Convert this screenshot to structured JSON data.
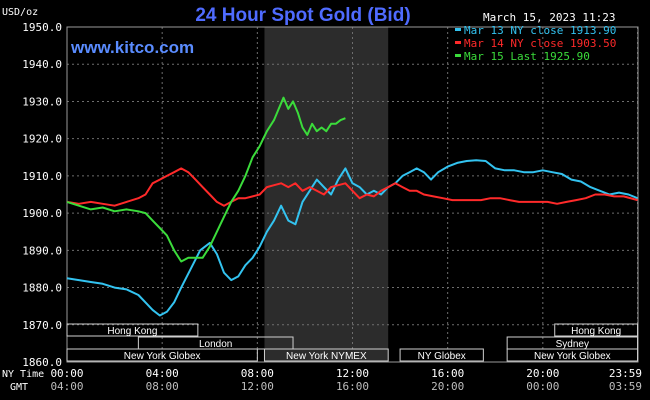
{
  "chart_data": {
    "type": "line",
    "title": "24 Hour Spot Gold (Bid)",
    "watermark": "www.kitco.com",
    "date_label": "March 15, 2023 11:23",
    "unit_label": "USD/oz",
    "ylim": [
      1860,
      1950
    ],
    "y_ticks": [
      "1950.0",
      "1940.0",
      "1930.0",
      "1920.0",
      "1910.0",
      "1900.0",
      "1890.0",
      "1880.0",
      "1870.0",
      "1860.0"
    ],
    "y_tick_values": [
      1950,
      1940,
      1930,
      1920,
      1910,
      1900,
      1890,
      1880,
      1870,
      1860
    ],
    "x_axis_rows": [
      {
        "label": "NY Time",
        "ticks": [
          "00:00",
          "04:00",
          "08:00",
          "12:00",
          "16:00",
          "20:00",
          "23:59"
        ]
      },
      {
        "label": "GMT",
        "ticks": [
          "04:00",
          "08:00",
          "12:00",
          "16:00",
          "20:00",
          "00:00",
          "03:59"
        ]
      }
    ],
    "x_tick_hours": [
      0,
      4,
      8,
      12,
      16,
      20,
      23.98
    ],
    "xlim": [
      0,
      24
    ],
    "grid": true,
    "legend_position": "top-right",
    "highlight_window_hours": [
      8.3,
      13.5
    ],
    "sessions": [
      {
        "name": "Hong Kong",
        "start": 0,
        "end": 5.5,
        "row": 0
      },
      {
        "name": "London",
        "start": 3,
        "end": 9.5,
        "row": 1
      },
      {
        "name": "New York Globex",
        "start": 0,
        "end": 8,
        "row": 2
      },
      {
        "name": "New York NYMEX",
        "start": 8.3,
        "end": 13.5,
        "row": 2
      },
      {
        "name": "NY Globex",
        "start": 14,
        "end": 17.5,
        "row": 2
      },
      {
        "name": "Hong Kong",
        "start": 20.5,
        "end": 23.98,
        "row": 0
      },
      {
        "name": "Sydney",
        "start": 18.5,
        "end": 23.98,
        "row": 1
      },
      {
        "name": "New York Globex",
        "start": 18.5,
        "end": 23.98,
        "row": 2
      }
    ],
    "series": [
      {
        "name": "Mar 13 NY close 1913.90",
        "color": "#33c3f0",
        "x": [
          0,
          0.5,
          1,
          1.5,
          2,
          2.5,
          3,
          3.3,
          3.6,
          3.9,
          4.2,
          4.5,
          4.8,
          5.2,
          5.6,
          6,
          6.3,
          6.6,
          6.9,
          7.2,
          7.5,
          7.8,
          8.1,
          8.4,
          8.7,
          9.0,
          9.3,
          9.6,
          9.9,
          10.2,
          10.5,
          10.8,
          11.1,
          11.4,
          11.7,
          12,
          12.3,
          12.6,
          12.9,
          13.2,
          13.5,
          13.8,
          14.1,
          14.4,
          14.7,
          15.0,
          15.3,
          15.6,
          16,
          16.4,
          16.8,
          17.2,
          17.6,
          18,
          18.4,
          18.8,
          19.2,
          19.6,
          20,
          20.4,
          20.8,
          21.2,
          21.6,
          22,
          22.4,
          22.8,
          23.2,
          23.6,
          23.98
        ],
        "y": [
          1882.5,
          1882,
          1881.5,
          1881,
          1880,
          1879.5,
          1878,
          1876,
          1874,
          1872.5,
          1873.5,
          1876,
          1880,
          1885,
          1890,
          1892,
          1889,
          1884,
          1882,
          1883,
          1886,
          1888,
          1891,
          1895,
          1898,
          1902,
          1898,
          1897,
          1903,
          1906,
          1909,
          1907,
          1905,
          1909,
          1912,
          1908,
          1907,
          1905,
          1906,
          1905,
          1907,
          1908,
          1910,
          1911,
          1912,
          1911,
          1909,
          1911,
          1912.5,
          1913.5,
          1914,
          1914.2,
          1914,
          1912,
          1911.5,
          1911.5,
          1911,
          1911,
          1911.5,
          1911,
          1910.5,
          1909,
          1908.5,
          1907,
          1906,
          1905,
          1905.5,
          1905,
          1904
        ]
      },
      {
        "name": "Mar 14 NY close 1903.50",
        "color": "#ff2a2a",
        "x": [
          0,
          0.5,
          1,
          1.5,
          2,
          2.5,
          3,
          3.3,
          3.6,
          3.9,
          4.2,
          4.5,
          4.8,
          5.1,
          5.4,
          5.7,
          6,
          6.3,
          6.6,
          6.9,
          7.2,
          7.5,
          7.8,
          8.1,
          8.4,
          8.7,
          9.0,
          9.3,
          9.6,
          9.9,
          10.2,
          10.5,
          10.8,
          11.1,
          11.4,
          11.7,
          12,
          12.3,
          12.6,
          12.9,
          13.2,
          13.5,
          13.8,
          14.1,
          14.4,
          14.7,
          15.0,
          15.4,
          15.8,
          16.2,
          16.6,
          17,
          17.4,
          17.8,
          18.2,
          18.6,
          19,
          19.4,
          19.8,
          20.2,
          20.6,
          21,
          21.4,
          21.8,
          22.2,
          22.6,
          23,
          23.4,
          23.98
        ],
        "y": [
          1903,
          1902.5,
          1903,
          1902.5,
          1902,
          1903,
          1904,
          1905,
          1908,
          1909,
          1910,
          1911,
          1912,
          1911,
          1909,
          1907,
          1905,
          1903,
          1902,
          1903,
          1904,
          1904,
          1904.5,
          1905,
          1907,
          1907.5,
          1908,
          1907,
          1908,
          1906,
          1907,
          1906,
          1905,
          1907,
          1907.5,
          1908,
          1906,
          1904,
          1905,
          1904.5,
          1906,
          1907,
          1908,
          1907,
          1906,
          1906,
          1905,
          1904.5,
          1904,
          1903.5,
          1903.5,
          1903.5,
          1903.5,
          1904,
          1904,
          1903.5,
          1903,
          1903,
          1903,
          1903,
          1902.5,
          1903,
          1903.5,
          1904,
          1905,
          1905,
          1904.5,
          1904.5,
          1903.5
        ]
      },
      {
        "name": "Mar 15 Last 1925.90",
        "color": "#3bdc3b",
        "x": [
          0,
          0.5,
          1,
          1.5,
          2,
          2.5,
          3,
          3.3,
          3.6,
          3.9,
          4.2,
          4.5,
          4.8,
          5.1,
          5.4,
          5.7,
          6,
          6.3,
          6.6,
          6.9,
          7.2,
          7.5,
          7.8,
          8.1,
          8.4,
          8.7,
          8.9,
          9.1,
          9.3,
          9.5,
          9.7,
          9.9,
          10.1,
          10.3,
          10.5,
          10.7,
          10.9,
          11.1,
          11.3,
          11.5,
          11.7
        ],
        "y": [
          1903,
          1902,
          1901,
          1901.5,
          1900.5,
          1901,
          1900.5,
          1900,
          1898,
          1896,
          1894,
          1890,
          1887,
          1888,
          1888,
          1888,
          1891,
          1895,
          1899,
          1903,
          1906,
          1910,
          1915,
          1918,
          1922,
          1925,
          1928,
          1931,
          1928,
          1930,
          1927,
          1923,
          1921,
          1924,
          1922,
          1923,
          1922,
          1924,
          1924,
          1925,
          1925.5
        ]
      }
    ]
  }
}
